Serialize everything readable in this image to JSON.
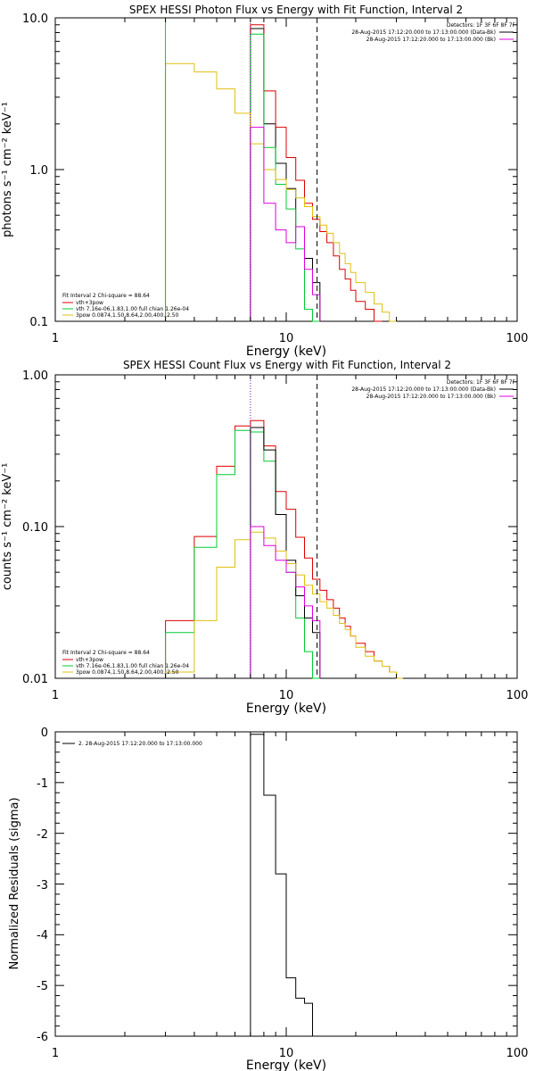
{
  "colors": {
    "black": "#000000",
    "red": "#dd0000",
    "green": "#00cc33",
    "yellow": "#e0c010",
    "magenta": "#dd00dd",
    "purple": "#7700bb"
  },
  "x_edges": [
    3,
    4,
    5,
    6,
    7,
    8,
    9,
    10,
    11,
    12,
    13,
    14,
    15,
    16,
    17,
    18,
    19,
    20,
    22,
    24,
    26,
    28,
    30,
    32,
    34,
    36
  ],
  "chart_data": [
    {
      "type": "line",
      "title": "SPEX HESSI Photon Flux vs Energy with Fit Function, Interval 2",
      "xlabel": "Energy (keV)",
      "ylabel": "photons s⁻¹ cm⁻² keV⁻¹",
      "xscale": "log",
      "yscale": "log",
      "xlim": [
        1,
        100
      ],
      "ylim": [
        0.1,
        10.0
      ],
      "xticks": [
        "1",
        "10",
        "100"
      ],
      "yticks": [
        "0.1",
        "1.0",
        "10.0"
      ],
      "vlines": [
        {
          "x": 3.0,
          "color": "green",
          "style": "solid"
        },
        {
          "x": 7.0,
          "color": "purple",
          "style": "dotted"
        },
        {
          "x": 13.6,
          "color": "black",
          "style": "dashed"
        }
      ],
      "legend": {
        "placement": "top-right",
        "header": "Detectors: 1F 3F 6F 8F 7F",
        "entries": [
          {
            "text": "28-Aug-2015 17:12:20.000 to 17:13:00.000 (Data-Bk)",
            "color": "black"
          },
          {
            "text": "28-Aug-2015 17:12:20.000 to 17:13:00.000 (Bk)",
            "color": "magenta"
          }
        ]
      },
      "fit_legend": {
        "placement": "bottom-left",
        "header": "Fit Interval 2   Chi-square = 88.64",
        "entries": [
          {
            "text": "vth+3pow",
            "color": "red"
          },
          {
            "text": "vth 7.16e-06,1.83,1.00  full chian 1.26e-04",
            "color": "green"
          },
          {
            "text": "3pow 0.0874,1.50,8.64,2.00,400.,2.50",
            "color": "yellow"
          }
        ]
      },
      "series": [
        {
          "color": "black",
          "x_start": 7,
          "values": [
            8.5,
            2.0,
            1.1,
            0.75,
            0.42,
            0.26,
            0.18
          ]
        },
        {
          "color": "red",
          "x_start": 7,
          "values": [
            9.0,
            3.3,
            1.9,
            1.2,
            0.85,
            0.6,
            0.47,
            0.39,
            0.33,
            0.27,
            0.22,
            0.19,
            0.16,
            0.135,
            0.12,
            0.1
          ]
        },
        {
          "color": "green",
          "x_start": 7,
          "values": [
            7.8,
            1.4,
            0.8,
            0.55,
            0.3,
            0.12,
            0.1
          ]
        },
        {
          "color": "yellow",
          "x_start": 3,
          "values": [
            5.0,
            4.4,
            3.4,
            2.35,
            1.48,
            1.0,
            0.86,
            0.74,
            0.65,
            0.57,
            0.49,
            0.43,
            0.38,
            0.33,
            0.28,
            0.24,
            0.21,
            0.18,
            0.155,
            0.13,
            0.115,
            0.1
          ]
        },
        {
          "color": "magenta",
          "x_start": 7,
          "values": [
            1.9,
            0.6,
            0.4,
            0.33,
            0.42,
            0.22,
            0.15
          ]
        }
      ]
    },
    {
      "type": "line",
      "title": "SPEX HESSI Count Flux vs Energy with Fit Function, Interval 2",
      "xlabel": "Energy (keV)",
      "ylabel": "counts s⁻¹ cm⁻² keV⁻¹",
      "xscale": "log",
      "yscale": "log",
      "xlim": [
        1,
        100
      ],
      "ylim": [
        0.01,
        1.0
      ],
      "xticks": [
        "1",
        "10",
        "100"
      ],
      "yticks": [
        "0.01",
        "0.10",
        "1.00"
      ],
      "vlines": [
        {
          "x": 7.0,
          "color": "purple",
          "style": "dotted"
        },
        {
          "x": 13.6,
          "color": "black",
          "style": "dashed"
        }
      ],
      "legend": {
        "placement": "top-right",
        "header": "Detectors: 1F 3F 6F 8F 7F",
        "entries": [
          {
            "text": "28-Aug-2015 17:12:20.000 to 17:13:00.000 (Data-Bk)",
            "color": "black"
          },
          {
            "text": "28-Aug-2015 17:12:20.000 to 17:13:00.000 (Bk)",
            "color": "magenta"
          }
        ]
      },
      "fit_legend": {
        "placement": "bottom-left",
        "header": "Fit Interval 2   Chi-square = 88.64",
        "entries": [
          {
            "text": "vth+3pow",
            "color": "red"
          },
          {
            "text": "vth 7.16e-06,1.83,1.00  full chian 1.26e-04",
            "color": "green"
          },
          {
            "text": "3pow 0.0874,1.50,8.64,2.00,400.,2.50",
            "color": "yellow"
          }
        ]
      },
      "series": [
        {
          "color": "red",
          "x_start": 3,
          "values": [
            0.024,
            0.086,
            0.25,
            0.46,
            0.5,
            0.34,
            0.17,
            0.13,
            0.085,
            0.062,
            0.045,
            0.038,
            0.033,
            0.029,
            0.025,
            0.022,
            0.019,
            0.017,
            0.015,
            0.013,
            0.012,
            0.011,
            0.01
          ]
        },
        {
          "color": "green",
          "x_start": 3,
          "values": [
            0.02,
            0.073,
            0.22,
            0.43,
            0.42,
            0.27,
            0.12,
            0.05,
            0.025,
            0.015,
            0.01
          ]
        },
        {
          "color": "black",
          "x_start": 7,
          "values": [
            0.45,
            0.32,
            0.12,
            0.06,
            0.035,
            0.025,
            0.02
          ]
        },
        {
          "color": "yellow",
          "x_start": 3,
          "values": [
            0.011,
            0.024,
            0.054,
            0.082,
            0.092,
            0.084,
            0.069,
            0.057,
            0.048,
            0.041,
            0.036,
            0.032,
            0.029,
            0.026,
            0.023,
            0.021,
            0.019,
            0.016,
            0.014,
            0.013,
            0.012,
            0.011,
            0.01
          ]
        },
        {
          "color": "magenta",
          "x_start": 7,
          "values": [
            0.1,
            0.075,
            0.06,
            0.05,
            0.04,
            0.03,
            0.024
          ]
        }
      ]
    },
    {
      "type": "line",
      "title": "",
      "xlabel": "Energy (keV)",
      "ylabel": "Normalized Residuals (sigma)",
      "xscale": "log",
      "yscale": "linear",
      "xlim": [
        1,
        100
      ],
      "ylim": [
        -6,
        0
      ],
      "xticks": [
        "1",
        "10",
        "100"
      ],
      "yticks": [
        "0",
        "-1",
        "-2",
        "-3",
        "-4",
        "-5",
        "-6"
      ],
      "legend": {
        "placement": "top-left",
        "entries": [
          {
            "text": "2. 28-Aug-2015 17:12:20.000 to 17:13:00.000",
            "color": "black"
          }
        ]
      },
      "series": [
        {
          "color": "black",
          "x_start": 7,
          "values": [
            -0.05,
            -1.25,
            -2.8,
            -4.85,
            -5.25,
            -5.35
          ]
        }
      ]
    }
  ]
}
